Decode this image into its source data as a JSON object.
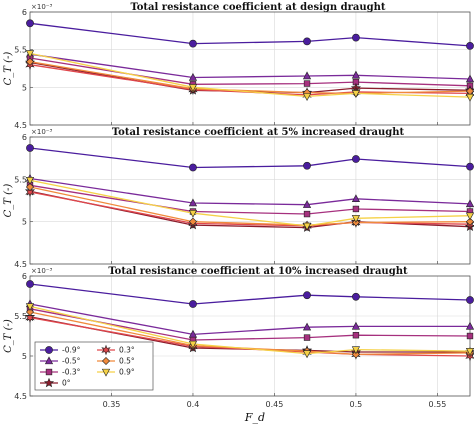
{
  "chart_data": [
    {
      "type": "line",
      "title": "Total resistance coefficient at design draught",
      "ylabel": "C_T (-)",
      "y_multiplier": "×10⁻³",
      "xlabel": "",
      "ylim": [
        4.5,
        6.0
      ],
      "xlim": [
        0.3,
        0.57
      ],
      "x_ticks": [],
      "y_ticks": [
        "4.5",
        "5",
        "5.5",
        "6"
      ],
      "grid": true,
      "x": [
        0.3,
        0.4,
        0.47,
        0.5,
        0.57
      ],
      "series": [
        {
          "name": "-0.9°",
          "values": [
            5.85,
            5.58,
            5.61,
            5.66,
            5.55
          ]
        },
        {
          "name": "-0.5°",
          "values": [
            5.44,
            5.13,
            5.15,
            5.16,
            5.11
          ]
        },
        {
          "name": "-0.3°",
          "values": [
            5.39,
            5.04,
            5.05,
            5.07,
            5.02
          ]
        },
        {
          "name": "0°",
          "values": [
            5.33,
            4.96,
            4.93,
            4.99,
            4.96
          ]
        },
        {
          "name": "0.3°",
          "values": [
            5.3,
            4.97,
            4.9,
            4.94,
            4.92
          ]
        },
        {
          "name": "0.5°",
          "values": [
            5.34,
            4.98,
            4.93,
            4.92,
            4.95
          ]
        },
        {
          "name": "0.9°",
          "values": [
            5.45,
            5.0,
            4.88,
            4.92,
            4.87
          ]
        }
      ]
    },
    {
      "type": "line",
      "title": "Total resistance coefficient at 5% increased draught",
      "ylabel": "C_T (-)",
      "y_multiplier": "×10⁻³",
      "xlabel": "",
      "ylim": [
        4.5,
        6.0
      ],
      "xlim": [
        0.3,
        0.57
      ],
      "x_ticks": [],
      "y_ticks": [
        "4.5",
        "5",
        "5.5",
        "6"
      ],
      "grid": true,
      "x": [
        0.3,
        0.4,
        0.47,
        0.5,
        0.57
      ],
      "series": [
        {
          "name": "-0.9°",
          "values": [
            5.87,
            5.64,
            5.66,
            5.74,
            5.65
          ]
        },
        {
          "name": "-0.5°",
          "values": [
            5.51,
            5.22,
            5.2,
            5.27,
            5.21
          ]
        },
        {
          "name": "-0.3°",
          "values": [
            5.43,
            5.12,
            5.09,
            5.15,
            5.12
          ]
        },
        {
          "name": "0°",
          "values": [
            5.36,
            4.96,
            4.93,
            5.0,
            4.94
          ]
        },
        {
          "name": "0.3°",
          "values": [
            5.35,
            4.98,
            4.95,
            4.99,
            4.97
          ]
        },
        {
          "name": "0.5°",
          "values": [
            5.41,
            5.0,
            4.96,
            4.99,
            5.0
          ]
        },
        {
          "name": "0.9°",
          "values": [
            5.49,
            5.1,
            4.95,
            5.04,
            5.07
          ]
        }
      ]
    },
    {
      "type": "line",
      "title": "Total resistance coefficient at 10% increased draught",
      "ylabel": "C_T (-)",
      "y_multiplier": "×10⁻³",
      "xlabel": "F_d",
      "ylim": [
        4.5,
        6.0
      ],
      "xlim": [
        0.3,
        0.57
      ],
      "x_ticks": [
        "0.35",
        "0.4",
        "0.45",
        "0.5",
        "0.55"
      ],
      "y_ticks": [
        "4.5",
        "5",
        "5.5",
        "6"
      ],
      "grid": true,
      "legend_position": "bottom-left",
      "x": [
        0.3,
        0.4,
        0.47,
        0.5,
        0.57
      ],
      "series": [
        {
          "name": "-0.9°",
          "values": [
            5.9,
            5.65,
            5.76,
            5.74,
            5.7
          ]
        },
        {
          "name": "-0.5°",
          "values": [
            5.65,
            5.27,
            5.36,
            5.37,
            5.37
          ]
        },
        {
          "name": "-0.3°",
          "values": [
            5.59,
            5.2,
            5.23,
            5.26,
            5.25
          ]
        },
        {
          "name": "0°",
          "values": [
            5.49,
            5.1,
            5.07,
            5.05,
            5.05
          ]
        },
        {
          "name": "0.3°",
          "values": [
            5.48,
            5.12,
            5.05,
            5.02,
            5.0
          ]
        },
        {
          "name": "0.5°",
          "values": [
            5.55,
            5.13,
            5.06,
            5.02,
            5.04
          ]
        },
        {
          "name": "0.9°",
          "values": [
            5.62,
            5.15,
            5.03,
            5.08,
            5.06
          ]
        }
      ]
    }
  ],
  "legend": {
    "entries": [
      "-0.9°",
      "-0.5°",
      "-0.3°",
      "0°",
      "0.3°",
      "0.5°",
      "0.9°"
    ],
    "colors": [
      "#4a1d9e",
      "#7a2a9a",
      "#a6307e",
      "#8c1d2d",
      "#e0474c",
      "#f08a3c",
      "#f5d147"
    ],
    "markers": [
      "circle",
      "triangle-up",
      "square",
      "star",
      "hexagram",
      "diamond",
      "triangle-down"
    ]
  }
}
